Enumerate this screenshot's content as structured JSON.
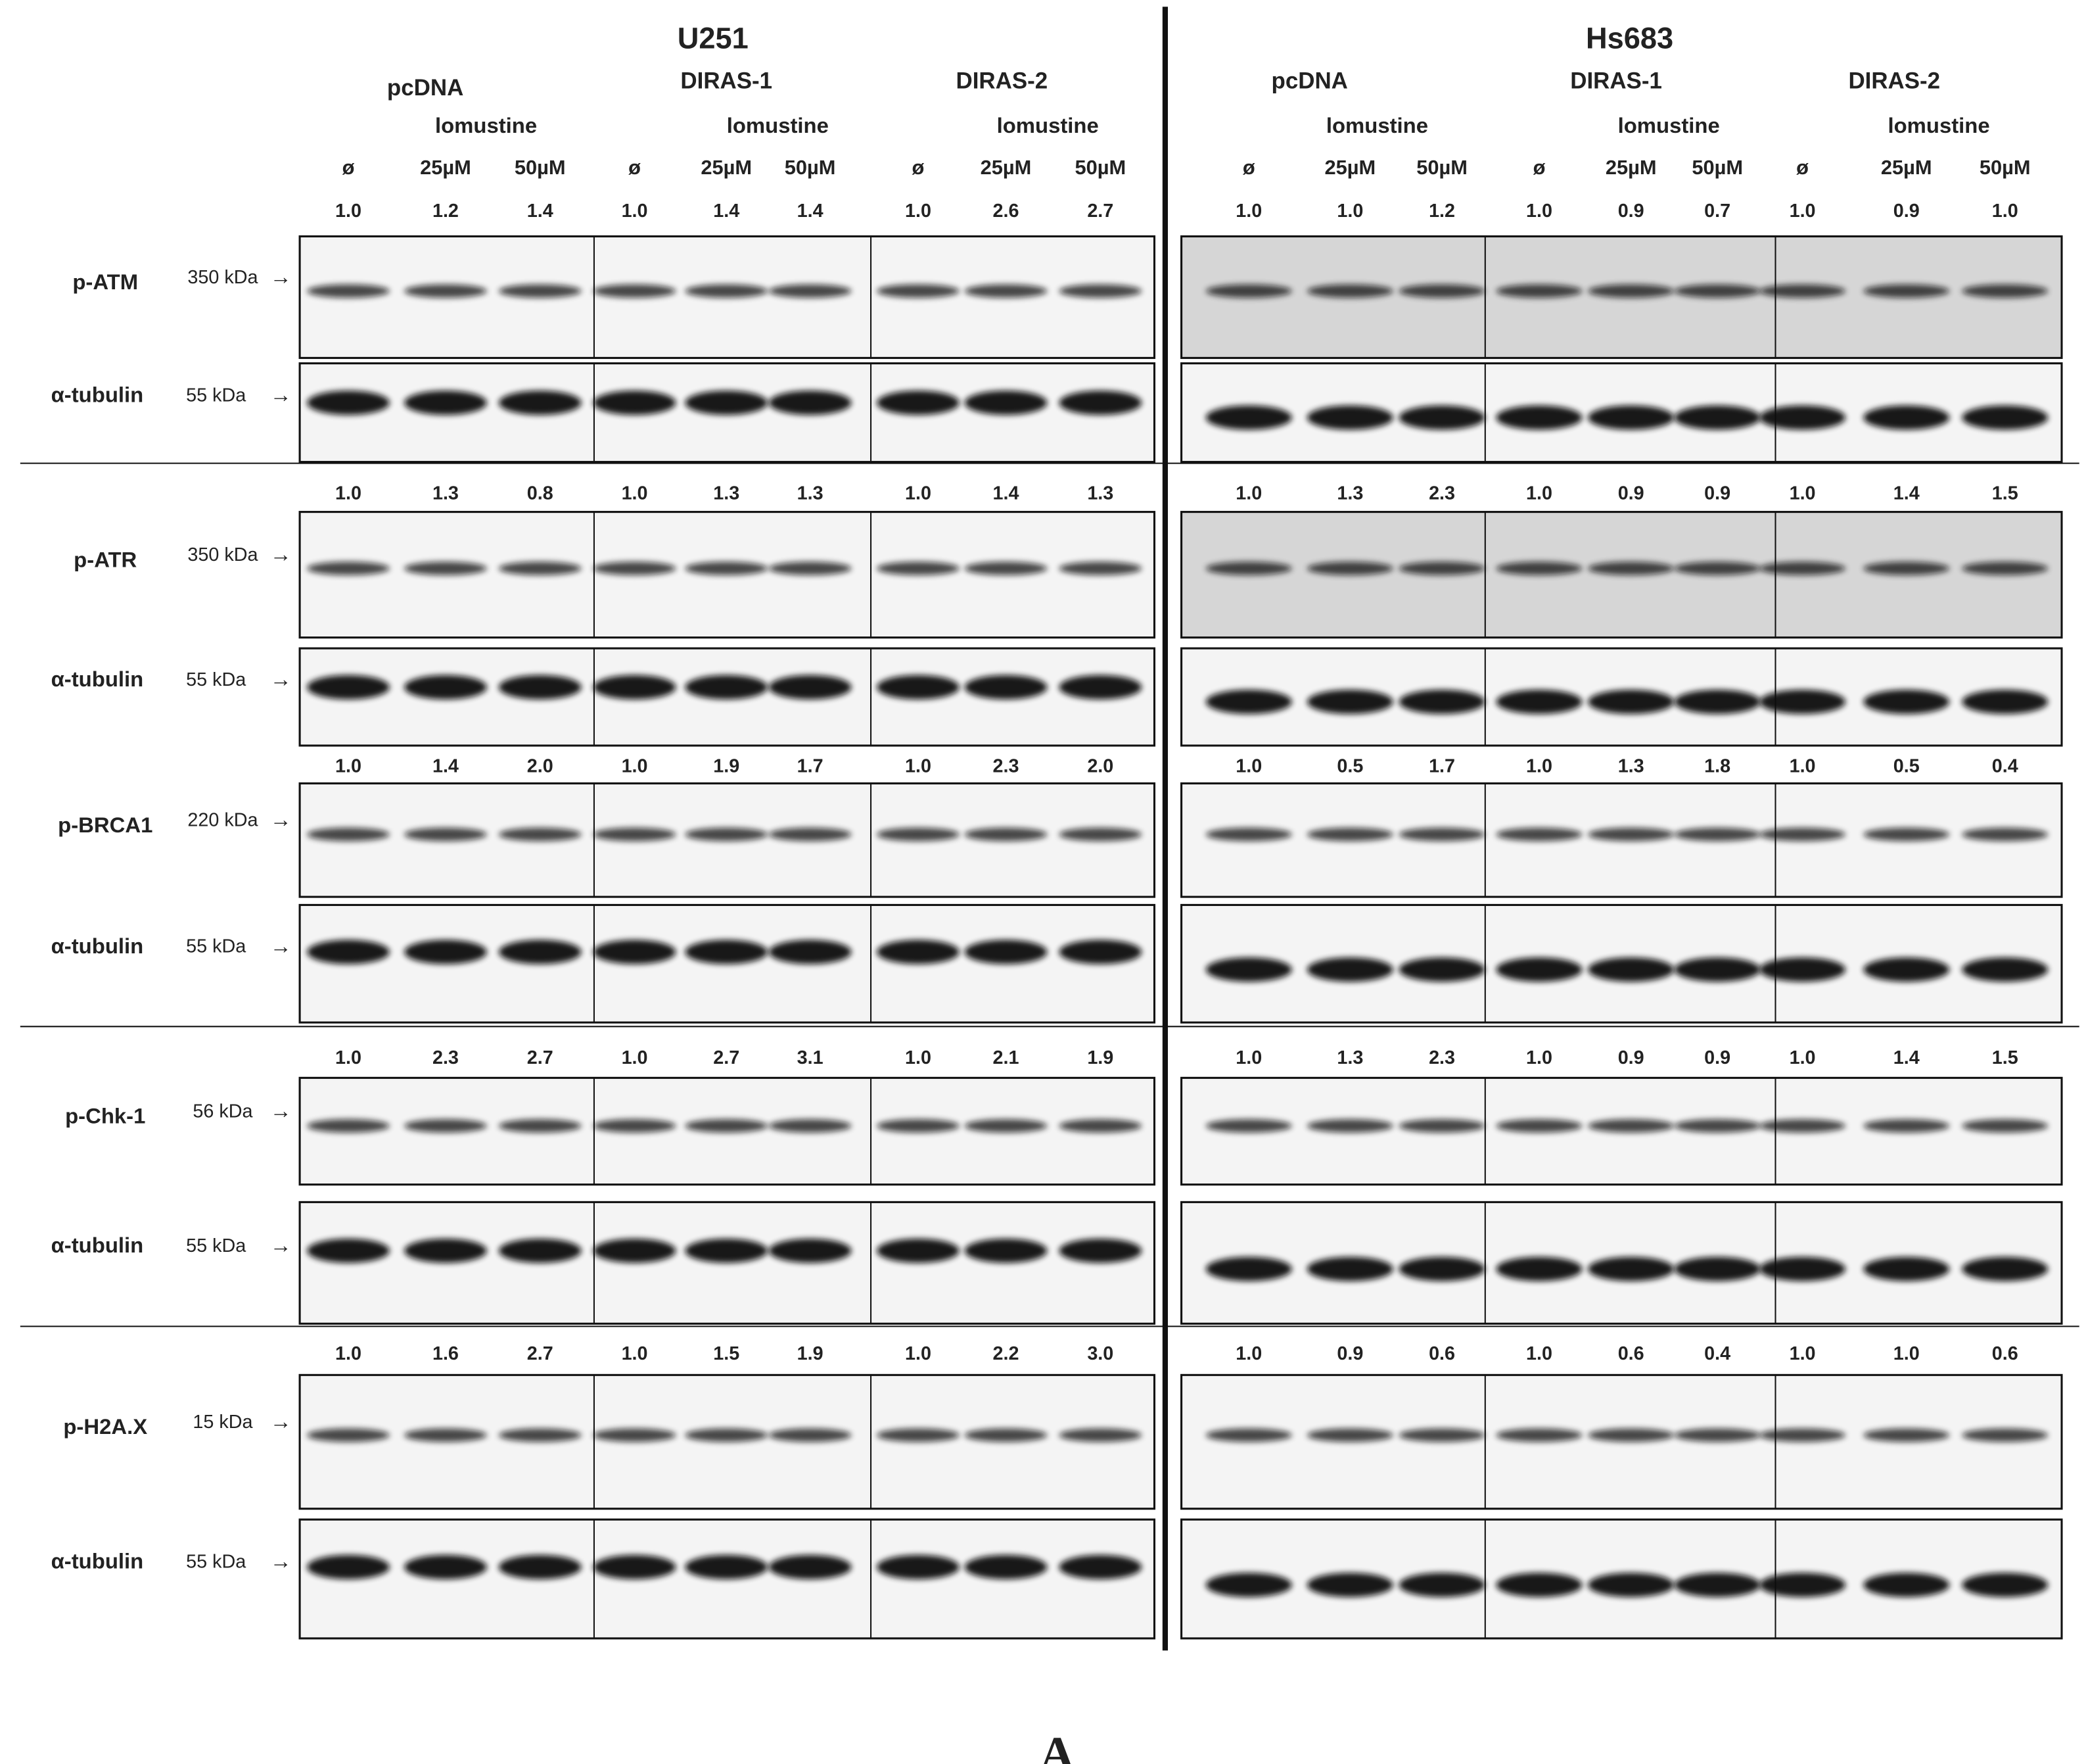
{
  "figure_label": "A",
  "blots": [
    {
      "protein": "p-ATM",
      "size": "350 kDa",
      "control": "α-tubulin",
      "control_size": "55 kDa"
    },
    {
      "protein": "p-ATR",
      "size": "350 kDa",
      "control": "α-tubulin",
      "control_size": "55 kDa"
    },
    {
      "protein": "p-BRCA1",
      "size": "220 kDa",
      "control": "α-tubulin",
      "control_size": "55 kDa"
    },
    {
      "protein": "p-Chk-1",
      "size": "56 kDa",
      "control": "α-tubulin",
      "control_size": "55 kDa"
    },
    {
      "protein": "p-H2A.X",
      "size": "15 kDa",
      "control": "α-tubulin",
      "control_size": "55 kDa"
    }
  ],
  "cell_lines": [
    {
      "name": "U251",
      "groups": [
        {
          "name": "pcDNA",
          "treatment": "lomustine",
          "lanes": [
            "ø",
            "25µM",
            "50µM"
          ]
        },
        {
          "name": "DIRAS-1",
          "treatment": "lomustine",
          "lanes": [
            "ø",
            "25µM",
            "50µM"
          ]
        },
        {
          "name": "DIRAS-2",
          "treatment": "lomustine",
          "lanes": [
            "ø",
            "25µM",
            "50µM"
          ]
        }
      ],
      "quant": [
        [
          "1.0",
          "1.2",
          "1.4",
          "1.0",
          "1.4",
          "1.4",
          "1.0",
          "2.6",
          "2.7"
        ],
        [
          "1.0",
          "1.3",
          "0.8",
          "1.0",
          "1.3",
          "1.3",
          "1.0",
          "1.4",
          "1.3"
        ],
        [
          "1.0",
          "1.4",
          "2.0",
          "1.0",
          "1.9",
          "1.7",
          "1.0",
          "2.3",
          "2.0"
        ],
        [
          "1.0",
          "2.3",
          "2.7",
          "1.0",
          "2.7",
          "3.1",
          "1.0",
          "2.1",
          "1.9"
        ],
        [
          "1.0",
          "1.6",
          "2.7",
          "1.0",
          "1.5",
          "1.9",
          "1.0",
          "2.2",
          "3.0"
        ]
      ]
    },
    {
      "name": "Hs683",
      "groups": [
        {
          "name": "pcDNA",
          "treatment": "lomustine",
          "lanes": [
            "ø",
            "25µM",
            "50µM"
          ]
        },
        {
          "name": "DIRAS-1",
          "treatment": "lomustine",
          "lanes": [
            "ø",
            "25µM",
            "50µM"
          ]
        },
        {
          "name": "DIRAS-2",
          "treatment": "lomustine",
          "lanes": [
            "ø",
            "25µM",
            "50µM"
          ]
        }
      ],
      "quant": [
        [
          "1.0",
          "1.0",
          "1.2",
          "1.0",
          "0.9",
          "0.7",
          "1.0",
          "0.9",
          "1.0"
        ],
        [
          "1.0",
          "1.3",
          "2.3",
          "1.0",
          "0.9",
          "0.9",
          "1.0",
          "1.4",
          "1.5"
        ],
        [
          "1.0",
          "0.5",
          "1.7",
          "1.0",
          "1.3",
          "1.8",
          "1.0",
          "0.5",
          "0.4"
        ],
        [
          "1.0",
          "1.3",
          "2.3",
          "1.0",
          "0.9",
          "0.9",
          "1.0",
          "1.4",
          "1.5"
        ],
        [
          "1.0",
          "0.9",
          "0.6",
          "1.0",
          "0.6",
          "0.4",
          "1.0",
          "1.0",
          "0.6"
        ]
      ]
    }
  ]
}
